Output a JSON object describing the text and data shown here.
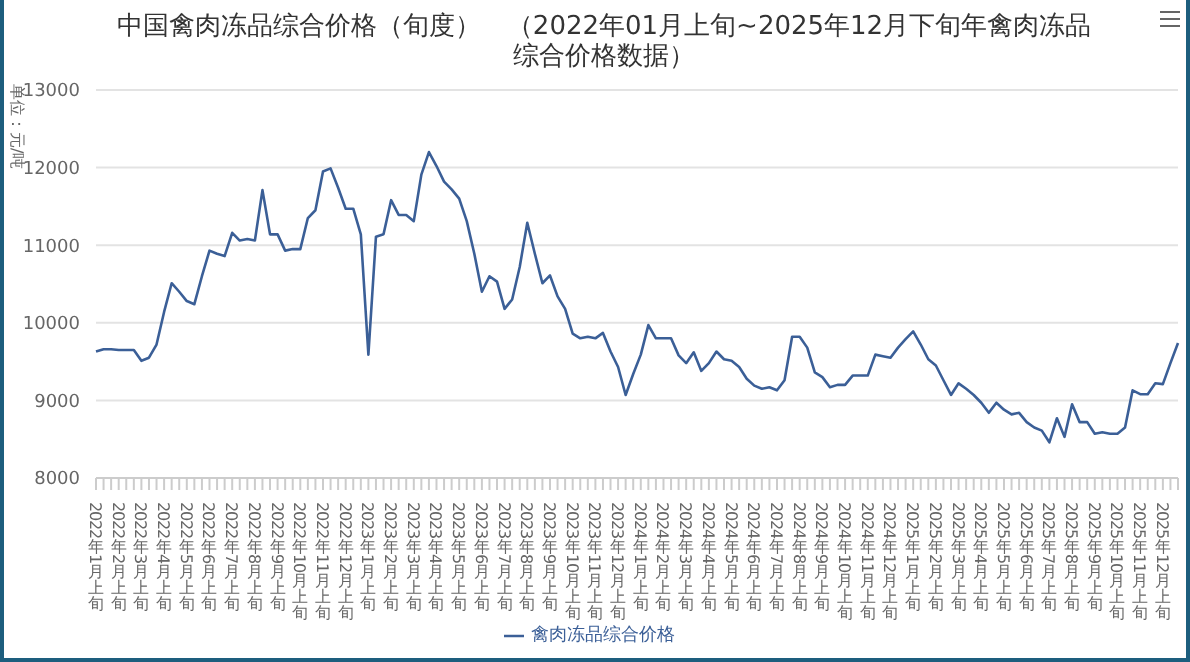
{
  "chart_data": {
    "type": "line",
    "title": "中国禽肉冻品综合价格（旬度）　（2022年01月上旬~2025年12月下旬年禽肉冻品综合价格数据）",
    "ylabel": "单位：元/吨",
    "categories": [
      "2022年1月上旬",
      null,
      null,
      "2022年2月上旬",
      null,
      null,
      "2022年3月上旬",
      null,
      null,
      "2022年4月上旬",
      null,
      null,
      "2022年5月上旬",
      null,
      null,
      "2022年6月上旬",
      null,
      null,
      "2022年7月上旬",
      null,
      null,
      "2022年8月上旬",
      null,
      null,
      "2022年9月上旬",
      null,
      null,
      "2022年10月上旬",
      null,
      null,
      "2022年11月上旬",
      null,
      null,
      "2022年12月上旬",
      null,
      null,
      "2023年1月上旬",
      null,
      null,
      "2023年2月上旬",
      null,
      null,
      "2023年3月上旬",
      null,
      null,
      "2023年4月上旬",
      null,
      null,
      "2023年5月上旬",
      null,
      null,
      "2023年6月上旬",
      null,
      null,
      "2023年7月上旬",
      null,
      null,
      "2023年8月上旬",
      null,
      null,
      "2023年9月上旬",
      null,
      null,
      "2023年10月上旬",
      null,
      null,
      "2023年11月上旬",
      null,
      null,
      "2023年12月上旬",
      null,
      null,
      "2024年1月上旬",
      null,
      null,
      "2024年2月上旬",
      null,
      null,
      "2024年3月上旬",
      null,
      null,
      "2024年4月上旬",
      null,
      null,
      "2024年5月上旬",
      null,
      null,
      "2024年6月上旬",
      null,
      null,
      "2024年7月上旬",
      null,
      null,
      "2024年8月上旬",
      null,
      null,
      "2024年9月上旬",
      null,
      null,
      "2024年10月上旬",
      null,
      null,
      "2024年11月上旬",
      null,
      null,
      "2024年12月上旬",
      null,
      null,
      "2025年1月上旬",
      null,
      null,
      "2025年2月上旬",
      null,
      null,
      "2025年3月上旬",
      null,
      null,
      "2025年4月上旬",
      null,
      null,
      "2025年5月上旬",
      null,
      null,
      "2025年6月上旬",
      null,
      null,
      "2025年7月上旬",
      null,
      null,
      "2025年8月上旬",
      null,
      null,
      "2025年9月上旬",
      null,
      null,
      "2025年10月上旬",
      null,
      null,
      "2025年11月上旬",
      null,
      null,
      "2025年12月上旬",
      null,
      null
    ],
    "series": [
      {
        "name": "禽肉冻品综合价格",
        "color": "#3b5f97",
        "values": [
          9630,
          9660,
          9660,
          9650,
          9650,
          9650,
          9510,
          9550,
          9720,
          10140,
          10510,
          10400,
          10280,
          10240,
          10600,
          10930,
          10890,
          10860,
          11160,
          11060,
          11080,
          11060,
          11710,
          11140,
          11140,
          10930,
          10950,
          10950,
          11350,
          11450,
          11950,
          11990,
          11740,
          11470,
          11470,
          11140,
          9590,
          11110,
          11140,
          11580,
          11390,
          11390,
          11310,
          11910,
          12200,
          12020,
          11820,
          11720,
          11600,
          11310,
          10890,
          10400,
          10600,
          10530,
          10180,
          10300,
          10720,
          11290,
          10890,
          10510,
          10610,
          10340,
          10180,
          9860,
          9800,
          9820,
          9800,
          9870,
          9630,
          9430,
          9070,
          9340,
          9590,
          9970,
          9800,
          9800,
          9800,
          9580,
          9480,
          9620,
          9380,
          9480,
          9630,
          9530,
          9510,
          9430,
          9280,
          9190,
          9150,
          9170,
          9130,
          9260,
          9820,
          9820,
          9680,
          9360,
          9300,
          9170,
          9200,
          9200,
          9320,
          9320,
          9320,
          9590,
          9570,
          9550,
          9680,
          9790,
          9890,
          9720,
          9530,
          9450,
          9260,
          9070,
          9220,
          9150,
          9070,
          8970,
          8840,
          8970,
          8880,
          8820,
          8840,
          8720,
          8650,
          8610,
          8460,
          8770,
          8530,
          8950,
          8720,
          8720,
          8570,
          8590,
          8570,
          8570,
          8650,
          9130,
          9080,
          9080,
          9220,
          9210,
          9480,
          9740
        ]
      }
    ],
    "ylim": [
      8000,
      13000
    ],
    "yticks": [
      8000,
      9000,
      10000,
      11000,
      12000,
      13000
    ],
    "grid": "y",
    "legend": "bottom",
    "marker": "none",
    "line_style": "solid"
  }
}
